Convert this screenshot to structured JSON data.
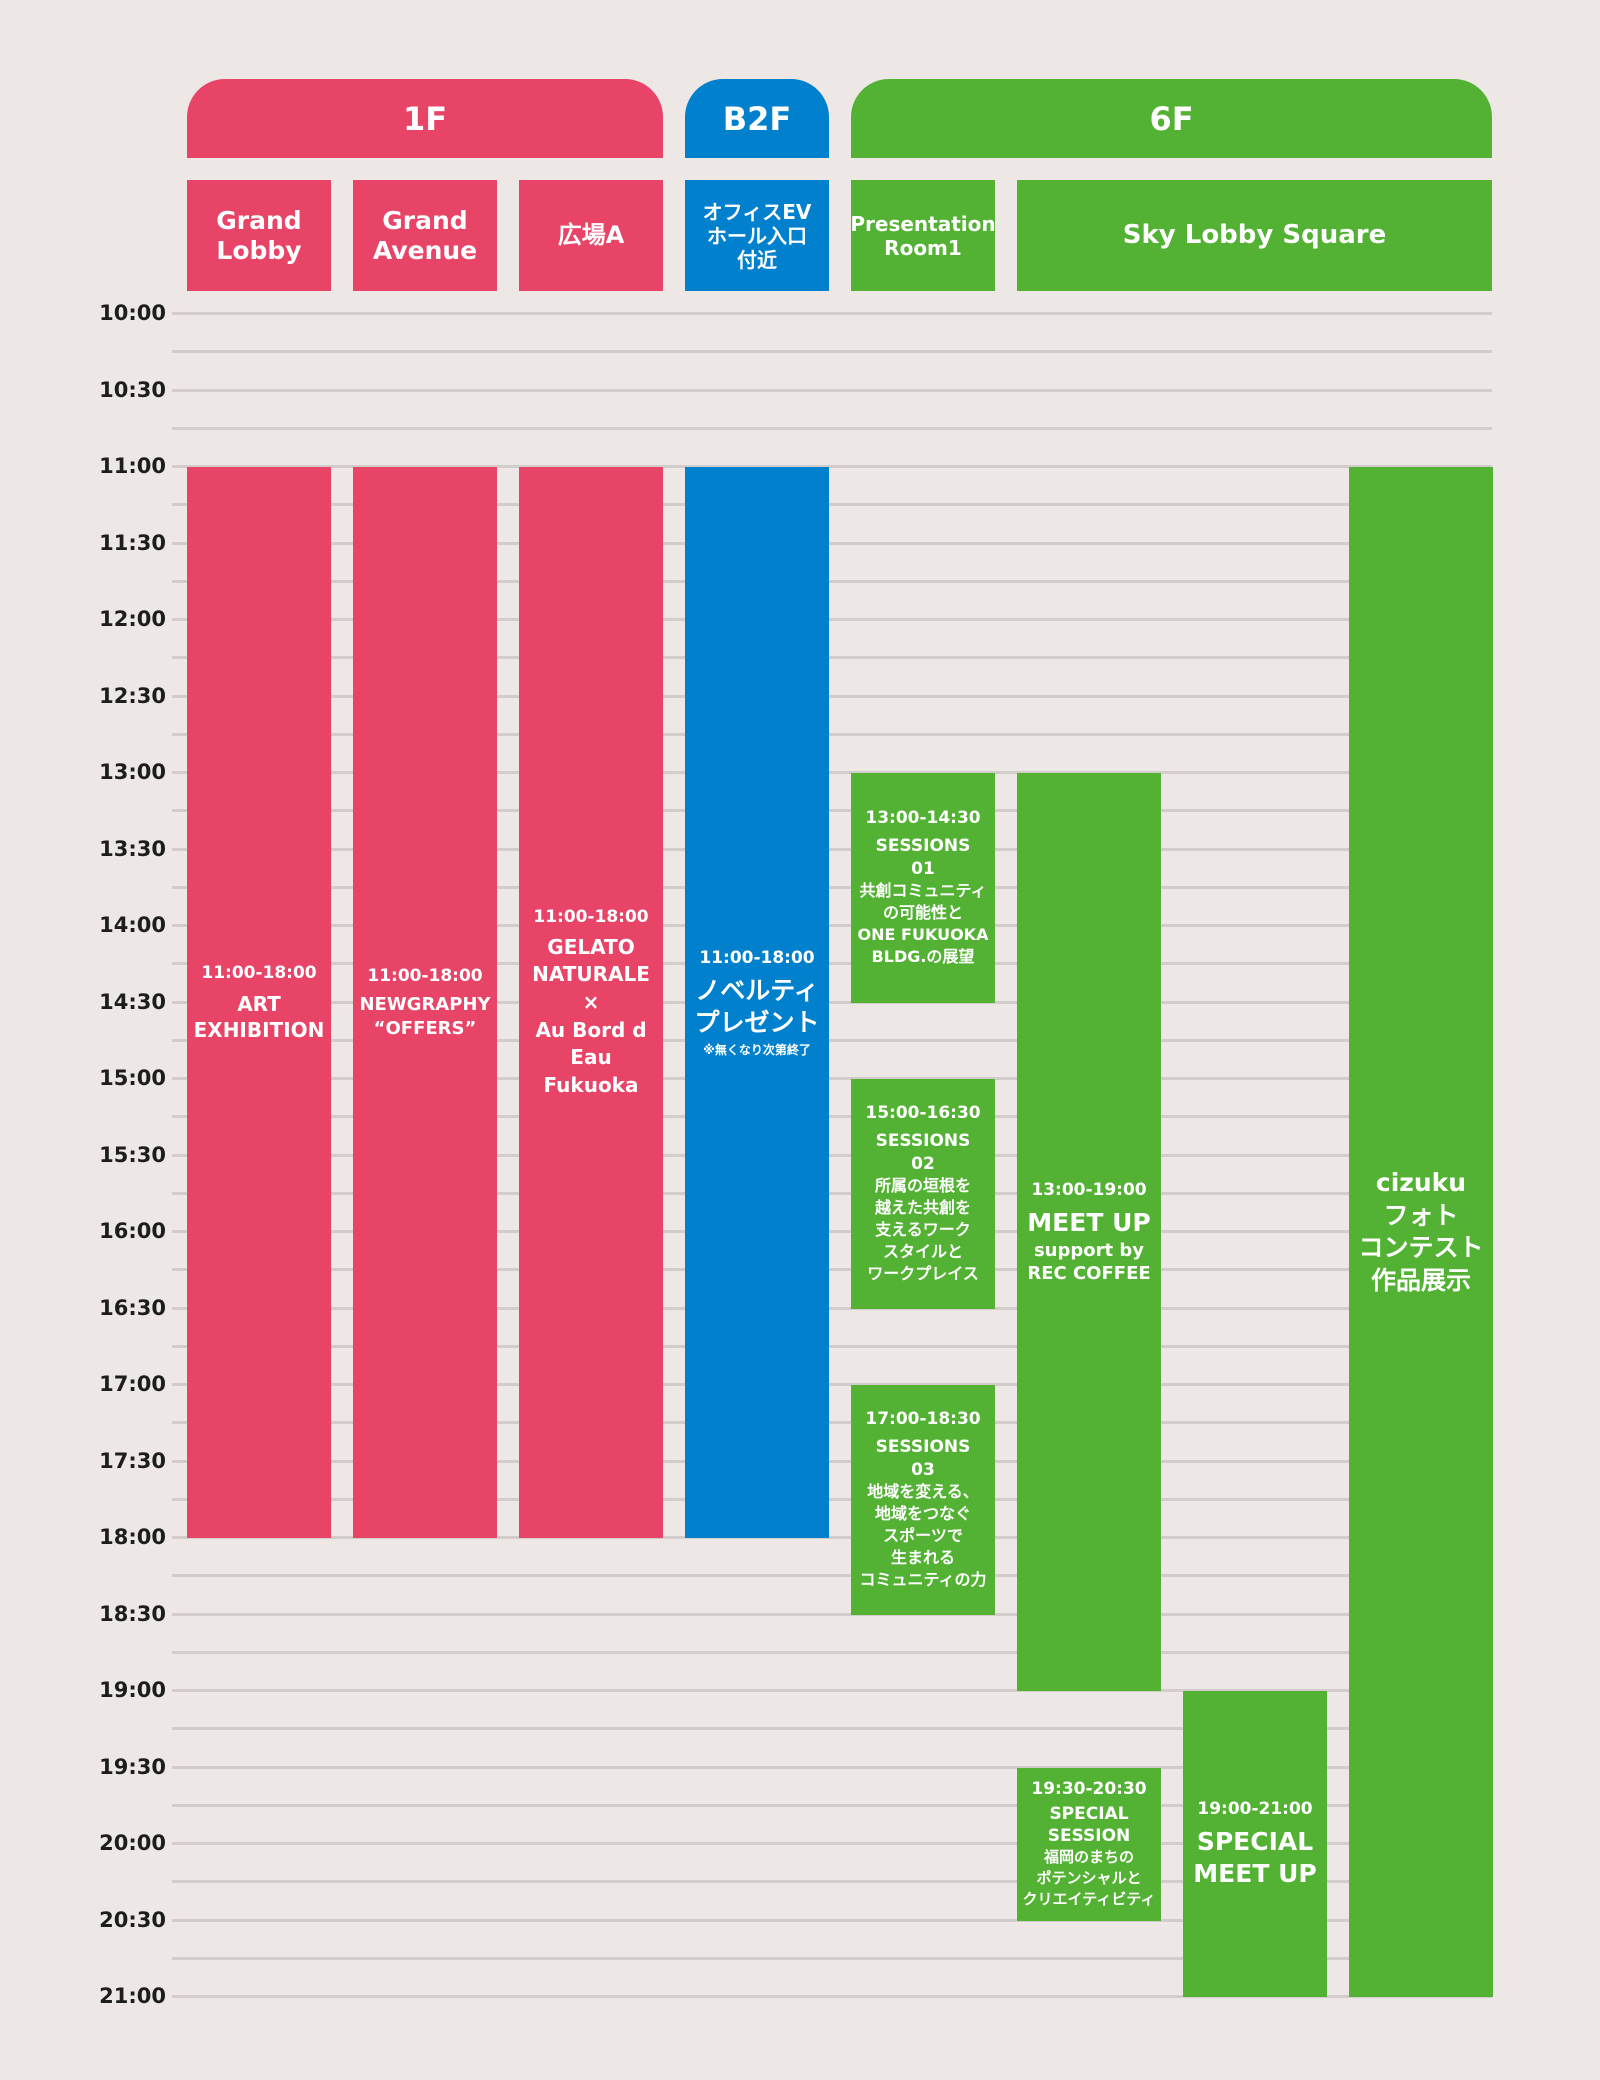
{
  "colors": {
    "pink": "#e84468",
    "blue": "#0180ce",
    "green": "#53b233",
    "background": "#ede8e5"
  },
  "floors": [
    {
      "label": "1F",
      "color": "pink"
    },
    {
      "label": "B2F",
      "color": "blue"
    },
    {
      "label": "6F",
      "color": "green"
    }
  ],
  "rooms": [
    {
      "label": "Grand\nLobby"
    },
    {
      "label": "Grand\nAvenue"
    },
    {
      "label": "広場A"
    },
    {
      "label": "オフィスEV\nホール入口\n付近"
    },
    {
      "label": "Presentation\nRoom1"
    },
    {
      "label": "Sky Lobby Square"
    }
  ],
  "times": [
    "10:00",
    "10:30",
    "11:00",
    "11:30",
    "12:00",
    "12:30",
    "13:00",
    "13:30",
    "14:00",
    "14:30",
    "15:00",
    "15:30",
    "16:00",
    "16:30",
    "17:00",
    "17:30",
    "18:00",
    "18:30",
    "19:00",
    "19:30",
    "20:00",
    "20:30",
    "21:00"
  ],
  "events": {
    "art_exhibition": {
      "time": "11:00-18:00",
      "title": "ART\nEXHIBITION",
      "start": "11:00",
      "end": "18:00"
    },
    "newgraphy": {
      "time": "11:00-18:00",
      "title": "NEWGRAPHY\n“OFFERS”",
      "start": "11:00",
      "end": "18:00"
    },
    "gelato": {
      "time": "11:00-18:00",
      "title": "GELATO\nNATURALE\n×\nAu Bord d\nEau Fukuoka",
      "start": "11:00",
      "end": "18:00"
    },
    "novelty": {
      "time": "11:00-18:00",
      "title": "ノベルティ\nプレゼント",
      "note": "※無くなり次第終了",
      "start": "11:00",
      "end": "18:00"
    },
    "session01": {
      "time": "13:00-14:30",
      "title": "SESSIONS\n01",
      "topic": "共創コミュニティ\nの可能性と\nONE FUKUOKA\nBLDG.の展望",
      "start": "13:00",
      "end": "14:30"
    },
    "session02": {
      "time": "15:00-16:30",
      "title": "SESSIONS\n02",
      "topic": "所属の垣根を\n越えた共創を\n支えるワーク\nスタイルと\nワークプレイス",
      "start": "15:00",
      "end": "16:30"
    },
    "session03": {
      "time": "17:00-18:30",
      "title": "SESSIONS\n03",
      "topic": "地域を変える、\n地域をつなぐ\nスポーツで\n生まれる\nコミュニティの力",
      "start": "17:00",
      "end": "18:30"
    },
    "meetup": {
      "time": "13:00-19:00",
      "title": "MEET UP",
      "sub": "support by\nREC COFFEE",
      "start": "13:00",
      "end": "19:00"
    },
    "special_session": {
      "time": "19:30-20:30",
      "title": "SPECIAL\nSESSION",
      "topic": "福岡のまちの\nポテンシャルと\nクリエイティビティ",
      "start": "19:30",
      "end": "20:30"
    },
    "special_meetup": {
      "time": "19:00-21:00",
      "title": "SPECIAL\nMEET UP",
      "start": "19:00",
      "end": "21:00"
    },
    "cizuku": {
      "title": "cizuku\nフォト\nコンテスト\n作品展示",
      "start": "11:00",
      "end": "21:00"
    }
  }
}
